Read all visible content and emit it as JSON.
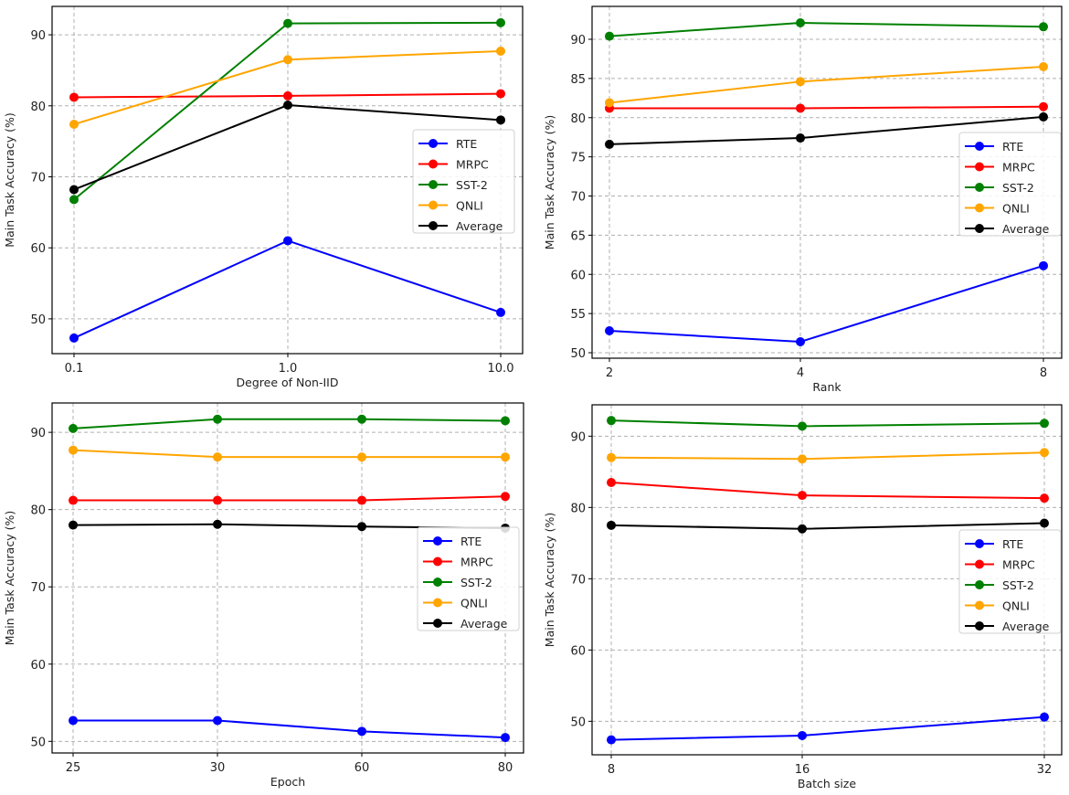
{
  "colors": {
    "RTE": "#0000ff",
    "MRPC": "#ff0000",
    "SST-2": "#008000",
    "QNLI": "#ffa500",
    "Average": "#000000"
  },
  "chart_data": [
    {
      "type": "line",
      "xlabel": "Degree of Non-IID",
      "ylabel": "Main Task Accuracy (%)",
      "x": [
        "0.1",
        "1.0",
        "10.0"
      ],
      "xscale": "log",
      "yticks": [
        "50",
        "60",
        "70",
        "80",
        "90"
      ],
      "ylim": [
        45.1,
        94
      ],
      "grid": true,
      "legend": "center-right",
      "series": [
        {
          "name": "RTE",
          "values": [
            47.3,
            61.0,
            50.9
          ]
        },
        {
          "name": "MRPC",
          "values": [
            81.2,
            81.4,
            81.7
          ]
        },
        {
          "name": "SST-2",
          "values": [
            66.8,
            91.6,
            91.7
          ]
        },
        {
          "name": "QNLI",
          "values": [
            77.4,
            86.5,
            87.7
          ]
        },
        {
          "name": "Average",
          "values": [
            68.2,
            80.1,
            78.0
          ]
        }
      ]
    },
    {
      "type": "line",
      "xlabel": "Rank",
      "ylabel": "Main Task Accuracy (%)",
      "x": [
        "2",
        "4",
        "8"
      ],
      "xscale": "log2",
      "yticks": [
        "50",
        "55",
        "60",
        "65",
        "70",
        "75",
        "80",
        "85",
        "90"
      ],
      "ylim": [
        49.3,
        94.2
      ],
      "grid": true,
      "legend": "center-right",
      "series": [
        {
          "name": "RTE",
          "values": [
            52.8,
            51.4,
            61.1
          ]
        },
        {
          "name": "MRPC",
          "values": [
            81.2,
            81.2,
            81.4
          ]
        },
        {
          "name": "SST-2",
          "values": [
            90.4,
            92.1,
            91.6
          ]
        },
        {
          "name": "QNLI",
          "values": [
            81.9,
            84.6,
            86.5
          ]
        },
        {
          "name": "Average",
          "values": [
            76.6,
            77.4,
            80.1
          ]
        }
      ]
    },
    {
      "type": "line",
      "xlabel": "Epoch",
      "ylabel": "Main Task Accuracy (%)",
      "x": [
        "25",
        "30",
        "60",
        "80"
      ],
      "xscale": "categorical",
      "yticks": [
        "50",
        "60",
        "70",
        "80",
        "90"
      ],
      "ylim": [
        48.5,
        93.8
      ],
      "grid": true,
      "legend": "center-right",
      "series": [
        {
          "name": "RTE",
          "values": [
            52.7,
            52.7,
            51.3,
            50.5
          ]
        },
        {
          "name": "MRPC",
          "values": [
            81.2,
            81.2,
            81.2,
            81.7
          ]
        },
        {
          "name": "SST-2",
          "values": [
            90.5,
            91.7,
            91.7,
            91.5
          ]
        },
        {
          "name": "QNLI",
          "values": [
            87.7,
            86.8,
            86.8,
            86.8
          ]
        },
        {
          "name": "Average",
          "values": [
            78.0,
            78.1,
            77.8,
            77.6
          ]
        }
      ]
    },
    {
      "type": "line",
      "xlabel": "Batch size",
      "ylabel": "Main Task Accuracy (%)",
      "x": [
        "8",
        "16",
        "32"
      ],
      "xscale": "log2",
      "yticks": [
        "50",
        "60",
        "70",
        "80",
        "90"
      ],
      "ylim": [
        45.3,
        94.4
      ],
      "grid": true,
      "legend": "center-right",
      "series": [
        {
          "name": "RTE",
          "values": [
            47.4,
            48.0,
            50.6
          ]
        },
        {
          "name": "MRPC",
          "values": [
            83.5,
            81.7,
            81.3
          ]
        },
        {
          "name": "SST-2",
          "values": [
            92.2,
            91.4,
            91.8
          ]
        },
        {
          "name": "QNLI",
          "values": [
            87.0,
            86.8,
            87.7
          ]
        },
        {
          "name": "Average",
          "values": [
            77.5,
            77.0,
            77.8
          ]
        }
      ]
    }
  ]
}
